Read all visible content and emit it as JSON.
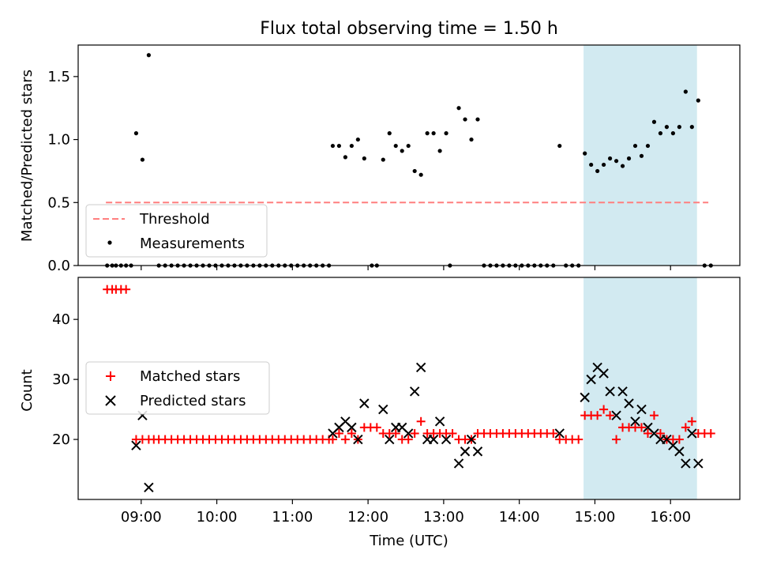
{
  "chart_data": [
    {
      "type": "scatter",
      "title": "Flux total observing time = 1.50 h",
      "xlabel": "",
      "ylabel": "Matched/Predicted stars",
      "xlim": [
        "08:10",
        "16:55"
      ],
      "ylim": [
        0,
        1.75
      ],
      "yticks": [
        "0.0",
        "0.5",
        "1.0",
        "1.5"
      ],
      "shaded_interval": [
        "14:51",
        "16:21"
      ],
      "threshold": {
        "name": "Threshold",
        "y": 0.5,
        "x_range": [
          "08:32",
          "16:30"
        ],
        "color": "#ff7f7f",
        "style": "dashed"
      },
      "legend": {
        "placement": "lower-left",
        "entries": [
          "Threshold",
          "Measurements"
        ]
      },
      "series": [
        {
          "name": "Measurements",
          "marker": "dot",
          "color": "#000000",
          "points": [
            [
              "08:33",
              0
            ],
            [
              "08:37",
              0
            ],
            [
              "08:40",
              0
            ],
            [
              "08:44",
              0
            ],
            [
              "08:48",
              0
            ],
            [
              "08:52",
              0
            ],
            [
              "08:56",
              1.05
            ],
            [
              "09:01",
              0.84
            ],
            [
              "09:06",
              1.67
            ],
            [
              "09:14",
              0
            ],
            [
              "09:19",
              0
            ],
            [
              "09:24",
              0
            ],
            [
              "09:29",
              0
            ],
            [
              "09:34",
              0
            ],
            [
              "09:39",
              0
            ],
            [
              "09:44",
              0
            ],
            [
              "09:49",
              0
            ],
            [
              "09:54",
              0
            ],
            [
              "09:59",
              0
            ],
            [
              "10:04",
              0
            ],
            [
              "10:09",
              0
            ],
            [
              "10:14",
              0
            ],
            [
              "10:19",
              0
            ],
            [
              "10:24",
              0
            ],
            [
              "10:29",
              0
            ],
            [
              "10:34",
              0
            ],
            [
              "10:39",
              0
            ],
            [
              "10:44",
              0
            ],
            [
              "10:49",
              0
            ],
            [
              "10:54",
              0
            ],
            [
              "10:59",
              0
            ],
            [
              "11:04",
              0
            ],
            [
              "11:09",
              0
            ],
            [
              "11:14",
              0
            ],
            [
              "11:19",
              0
            ],
            [
              "11:24",
              0
            ],
            [
              "11:29",
              0
            ],
            [
              "11:32",
              0.95
            ],
            [
              "11:37",
              0.95
            ],
            [
              "11:42",
              0.86
            ],
            [
              "11:47",
              0.95
            ],
            [
              "11:52",
              1.0
            ],
            [
              "11:57",
              0.85
            ],
            [
              "12:03",
              0
            ],
            [
              "12:07",
              0
            ],
            [
              "12:12",
              0.84
            ],
            [
              "12:17",
              1.05
            ],
            [
              "12:22",
              0.95
            ],
            [
              "12:27",
              0.91
            ],
            [
              "12:32",
              0.95
            ],
            [
              "12:37",
              0.75
            ],
            [
              "12:42",
              0.72
            ],
            [
              "12:47",
              1.05
            ],
            [
              "12:52",
              1.05
            ],
            [
              "12:57",
              0.91
            ],
            [
              "13:02",
              1.05
            ],
            [
              "13:05",
              0
            ],
            [
              "13:12",
              1.25
            ],
            [
              "13:17",
              1.16
            ],
            [
              "13:22",
              1.0
            ],
            [
              "13:27",
              1.16
            ],
            [
              "13:32",
              0
            ],
            [
              "13:37",
              0
            ],
            [
              "13:42",
              0
            ],
            [
              "13:47",
              0
            ],
            [
              "13:52",
              0
            ],
            [
              "13:57",
              0
            ],
            [
              "14:02",
              0
            ],
            [
              "14:07",
              0
            ],
            [
              "14:12",
              0
            ],
            [
              "14:17",
              0
            ],
            [
              "14:22",
              0
            ],
            [
              "14:27",
              0
            ],
            [
              "14:32",
              0.95
            ],
            [
              "14:37",
              0
            ],
            [
              "14:42",
              0
            ],
            [
              "14:47",
              0
            ],
            [
              "14:52",
              0.89
            ],
            [
              "14:57",
              0.8
            ],
            [
              "15:02",
              0.75
            ],
            [
              "15:07",
              0.8
            ],
            [
              "15:12",
              0.85
            ],
            [
              "15:17",
              0.83
            ],
            [
              "15:22",
              0.79
            ],
            [
              "15:27",
              0.85
            ],
            [
              "15:32",
              0.95
            ],
            [
              "15:37",
              0.87
            ],
            [
              "15:42",
              0.95
            ],
            [
              "15:47",
              1.14
            ],
            [
              "15:52",
              1.05
            ],
            [
              "15:57",
              1.1
            ],
            [
              "16:02",
              1.05
            ],
            [
              "16:07",
              1.1
            ],
            [
              "16:12",
              1.38
            ],
            [
              "16:17",
              1.1
            ],
            [
              "16:22",
              1.31
            ],
            [
              "16:27",
              0
            ],
            [
              "16:32",
              0
            ]
          ]
        }
      ]
    },
    {
      "type": "scatter",
      "title": "",
      "xlabel": "Time (UTC)",
      "ylabel": "Count",
      "xlim": [
        "08:10",
        "16:55"
      ],
      "ylim": [
        10,
        47
      ],
      "yticks": [
        "20",
        "30",
        "40"
      ],
      "xticks": [
        "09:00",
        "10:00",
        "11:00",
        "12:00",
        "13:00",
        "14:00",
        "15:00",
        "16:00"
      ],
      "shaded_interval": [
        "14:51",
        "16:21"
      ],
      "legend": {
        "placement": "center-left",
        "entries": [
          "Matched stars",
          "Predicted stars"
        ]
      },
      "series": [
        {
          "name": "Matched stars",
          "marker": "plus",
          "color": "#ff0000",
          "points": [
            [
              "08:33",
              45
            ],
            [
              "08:37",
              45
            ],
            [
              "08:40",
              45
            ],
            [
              "08:44",
              45
            ],
            [
              "08:48",
              45
            ],
            [
              "08:56",
              20
            ],
            [
              "09:01",
              20
            ],
            [
              "09:06",
              20
            ],
            [
              "09:10",
              20
            ],
            [
              "09:14",
              20
            ],
            [
              "09:19",
              20
            ],
            [
              "09:24",
              20
            ],
            [
              "09:29",
              20
            ],
            [
              "09:34",
              20
            ],
            [
              "09:39",
              20
            ],
            [
              "09:44",
              20
            ],
            [
              "09:49",
              20
            ],
            [
              "09:54",
              20
            ],
            [
              "09:59",
              20
            ],
            [
              "10:04",
              20
            ],
            [
              "10:09",
              20
            ],
            [
              "10:14",
              20
            ],
            [
              "10:19",
              20
            ],
            [
              "10:24",
              20
            ],
            [
              "10:29",
              20
            ],
            [
              "10:34",
              20
            ],
            [
              "10:39",
              20
            ],
            [
              "10:44",
              20
            ],
            [
              "10:49",
              20
            ],
            [
              "10:54",
              20
            ],
            [
              "10:59",
              20
            ],
            [
              "11:04",
              20
            ],
            [
              "11:09",
              20
            ],
            [
              "11:14",
              20
            ],
            [
              "11:19",
              20
            ],
            [
              "11:24",
              20
            ],
            [
              "11:29",
              20
            ],
            [
              "11:32",
              20
            ],
            [
              "11:37",
              21
            ],
            [
              "11:42",
              20
            ],
            [
              "11:47",
              21
            ],
            [
              "11:52",
              20
            ],
            [
              "11:57",
              22
            ],
            [
              "12:02",
              22
            ],
            [
              "12:07",
              22
            ],
            [
              "12:12",
              21
            ],
            [
              "12:17",
              21
            ],
            [
              "12:22",
              21
            ],
            [
              "12:27",
              20
            ],
            [
              "12:32",
              20
            ],
            [
              "12:37",
              21
            ],
            [
              "12:42",
              23
            ],
            [
              "12:47",
              21
            ],
            [
              "12:52",
              21
            ],
            [
              "12:57",
              21
            ],
            [
              "13:02",
              21
            ],
            [
              "13:07",
              21
            ],
            [
              "13:12",
              20
            ],
            [
              "13:17",
              20
            ],
            [
              "13:22",
              20
            ],
            [
              "13:27",
              21
            ],
            [
              "13:32",
              21
            ],
            [
              "13:37",
              21
            ],
            [
              "13:42",
              21
            ],
            [
              "13:47",
              21
            ],
            [
              "13:52",
              21
            ],
            [
              "13:57",
              21
            ],
            [
              "14:02",
              21
            ],
            [
              "14:07",
              21
            ],
            [
              "14:12",
              21
            ],
            [
              "14:17",
              21
            ],
            [
              "14:22",
              21
            ],
            [
              "14:27",
              21
            ],
            [
              "14:32",
              20
            ],
            [
              "14:37",
              20
            ],
            [
              "14:42",
              20
            ],
            [
              "14:47",
              20
            ],
            [
              "14:52",
              24
            ],
            [
              "14:57",
              24
            ],
            [
              "15:02",
              24
            ],
            [
              "15:07",
              25
            ],
            [
              "15:12",
              24
            ],
            [
              "15:17",
              20
            ],
            [
              "15:22",
              22
            ],
            [
              "15:27",
              22
            ],
            [
              "15:32",
              22
            ],
            [
              "15:37",
              22
            ],
            [
              "15:42",
              21
            ],
            [
              "15:47",
              24
            ],
            [
              "15:52",
              21
            ],
            [
              "15:57",
              20
            ],
            [
              "16:02",
              20
            ],
            [
              "16:07",
              20
            ],
            [
              "16:12",
              22
            ],
            [
              "16:17",
              23
            ],
            [
              "16:22",
              21
            ],
            [
              "16:27",
              21
            ],
            [
              "16:32",
              21
            ]
          ]
        },
        {
          "name": "Predicted stars",
          "marker": "x",
          "color": "#000000",
          "points": [
            [
              "08:56",
              19
            ],
            [
              "09:01",
              24
            ],
            [
              "09:06",
              12
            ],
            [
              "11:32",
              21
            ],
            [
              "11:37",
              22
            ],
            [
              "11:42",
              23
            ],
            [
              "11:47",
              22
            ],
            [
              "11:52",
              20
            ],
            [
              "11:57",
              26
            ],
            [
              "12:12",
              25
            ],
            [
              "12:17",
              20
            ],
            [
              "12:22",
              22
            ],
            [
              "12:27",
              22
            ],
            [
              "12:32",
              21
            ],
            [
              "12:37",
              28
            ],
            [
              "12:42",
              32
            ],
            [
              "12:47",
              20
            ],
            [
              "12:52",
              20
            ],
            [
              "12:57",
              23
            ],
            [
              "13:02",
              20
            ],
            [
              "13:12",
              16
            ],
            [
              "13:17",
              18
            ],
            [
              "13:22",
              20
            ],
            [
              "13:27",
              18
            ],
            [
              "14:32",
              21
            ],
            [
              "14:52",
              27
            ],
            [
              "14:57",
              30
            ],
            [
              "15:02",
              32
            ],
            [
              "15:07",
              31
            ],
            [
              "15:12",
              28
            ],
            [
              "15:17",
              24
            ],
            [
              "15:22",
              28
            ],
            [
              "15:27",
              26
            ],
            [
              "15:32",
              23
            ],
            [
              "15:37",
              25
            ],
            [
              "15:42",
              22
            ],
            [
              "15:47",
              21
            ],
            [
              "15:52",
              20
            ],
            [
              "15:57",
              20
            ],
            [
              "16:02",
              19
            ],
            [
              "16:07",
              18
            ],
            [
              "16:12",
              16
            ],
            [
              "16:17",
              21
            ],
            [
              "16:22",
              16
            ]
          ]
        }
      ]
    }
  ]
}
